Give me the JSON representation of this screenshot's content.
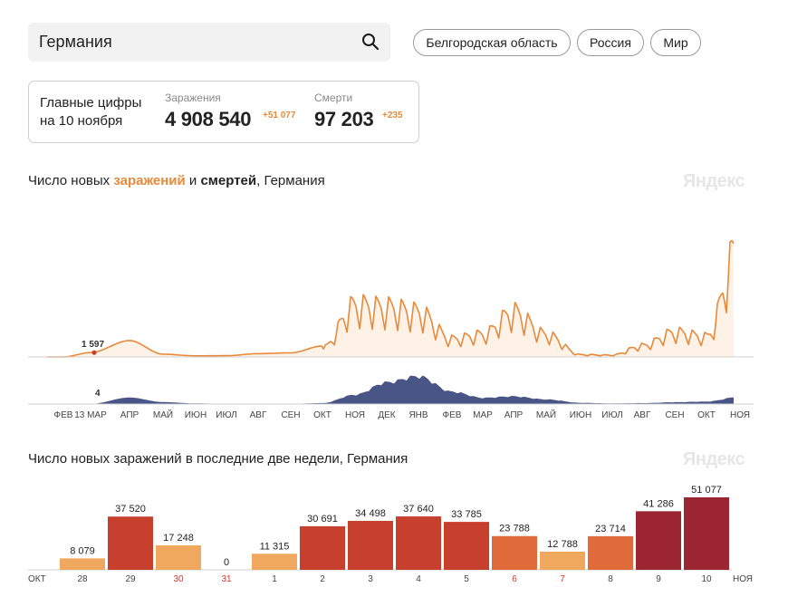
{
  "search": {
    "value": "Германия",
    "icon": "search-icon"
  },
  "chips": [
    {
      "label": "Белгородская область"
    },
    {
      "label": "Россия"
    },
    {
      "label": "Мир"
    }
  ],
  "stats": {
    "title_line1": "Главные цифры",
    "title_line2": "на 10 ноября",
    "infections": {
      "label": "Заражения",
      "value": "4 908 540",
      "delta": "+51 077"
    },
    "deaths": {
      "label": "Смерти",
      "value": "97 203",
      "delta": "+235"
    }
  },
  "chart1": {
    "title_prefix": "Число новых ",
    "title_infections": "заражений",
    "title_mid": " и ",
    "title_deaths": "смертей",
    "title_suffix": ", Германия",
    "watermark": "Яндекс"
  },
  "chart2": {
    "title": "Число новых заражений в последние две недели, Германия",
    "watermark": "Яндекс"
  },
  "colors": {
    "infections": "#e8893a",
    "deaths": "#4a5587",
    "bar_low": "#f0a85e",
    "bar_mid": "#e06a3a",
    "bar_high": "#c7402e",
    "bar_max": "#9b2530",
    "weekend_label": "#d83a2a"
  },
  "chart_data": [
    {
      "type": "area",
      "title": "Число новых заражений и смертей, Германия",
      "x_ticks": [
        "ФЕВ",
        "13 МАР",
        "АПР",
        "МАЙ",
        "ИЮН",
        "ИЮЛ",
        "АВГ",
        "СЕН",
        "ОКТ",
        "НОЯ",
        "ДЕК",
        "ЯНВ",
        "ФЕВ",
        "МАР",
        "АПР",
        "МАЙ",
        "ИЮН",
        "ИЮЛ",
        "АВГ",
        "СЕН",
        "ОКТ",
        "НОЯ"
      ],
      "annotations": [
        {
          "series": "infections",
          "x": "13 МАР",
          "label": "1 597"
        },
        {
          "series": "deaths",
          "x": "13 МАР",
          "label": "4"
        }
      ],
      "series": [
        {
          "name": "заражения",
          "points": [
            [
              "ФЕВ",
              0
            ],
            [
              "13 МАР",
              1597
            ],
            [
              "АПР",
              6000
            ],
            [
              "МАЙ",
              1000
            ],
            [
              "ИЮН",
              400
            ],
            [
              "ИЮЛ",
              450
            ],
            [
              "АВГ",
              1200
            ],
            [
              "СЕН",
              1500
            ],
            [
              "ОКТ",
              4000
            ],
            [
              "НОЯ",
              23000
            ],
            [
              "ДЕК",
              22000
            ],
            [
              "ЯНВ",
              20000
            ],
            [
              "ФЕВ",
              8000
            ],
            [
              "МАР",
              10000
            ],
            [
              "АПР",
              20000
            ],
            [
              "МАЙ",
              10000
            ],
            [
              "ИЮН",
              1000
            ],
            [
              "ИЮЛ",
              800
            ],
            [
              "АВГ",
              5000
            ],
            [
              "СЕН",
              11000
            ],
            [
              "ОКТ",
              9000
            ],
            [
              "НОЯ",
              51077
            ]
          ]
        },
        {
          "name": "смерти",
          "points": [
            [
              "ФЕВ",
              0
            ],
            [
              "13 МАР",
              4
            ],
            [
              "АПР",
              200
            ],
            [
              "МАЙ",
              60
            ],
            [
              "ИЮН",
              20
            ],
            [
              "ИЮЛ",
              8
            ],
            [
              "АВГ",
              6
            ],
            [
              "СЕН",
              8
            ],
            [
              "ОКТ",
              30
            ],
            [
              "НОЯ",
              300
            ],
            [
              "ДЕК",
              700
            ],
            [
              "ЯНВ",
              900
            ],
            [
              "ФЕВ",
              400
            ],
            [
              "МАР",
              200
            ],
            [
              "АПР",
              250
            ],
            [
              "МАЙ",
              150
            ],
            [
              "ИЮН",
              40
            ],
            [
              "ИЮЛ",
              20
            ],
            [
              "АВГ",
              30
            ],
            [
              "СЕН",
              60
            ],
            [
              "ОКТ",
              80
            ],
            [
              "НОЯ",
              235
            ]
          ]
        }
      ]
    },
    {
      "type": "bar",
      "title": "Число новых заражений в последние две недели, Германия",
      "x_start_label": "ОКТ",
      "x_end_label": "НОЯ",
      "categories": [
        "28",
        "29",
        "30",
        "31",
        "1",
        "2",
        "3",
        "4",
        "5",
        "6",
        "7",
        "8",
        "9",
        "10"
      ],
      "values": [
        8079,
        37520,
        17248,
        0,
        11315,
        30691,
        34498,
        37640,
        33785,
        23788,
        12788,
        23714,
        41286,
        51077
      ],
      "value_labels": [
        "8 079",
        "37 520",
        "17 248",
        "0",
        "11 315",
        "30 691",
        "34 498",
        "37 640",
        "33 785",
        "23 788",
        "12 788",
        "23 714",
        "41 286",
        "51 077"
      ],
      "weekend_categories": [
        "30",
        "31",
        "6",
        "7"
      ]
    }
  ]
}
